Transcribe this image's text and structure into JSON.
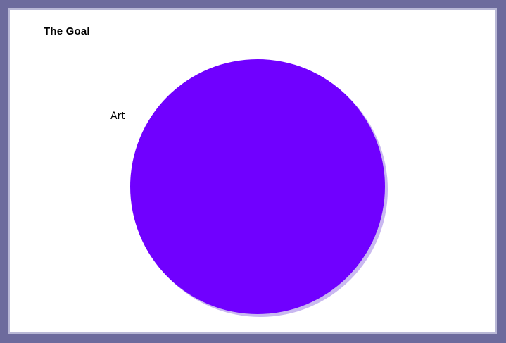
{
  "chart_data": {
    "type": "pie",
    "title": "The Goal",
    "slices": [
      {
        "label": "Art",
        "value": 100,
        "color": "#7000ff"
      }
    ],
    "shadow_color": "#c9b8f0",
    "legend": "none"
  }
}
